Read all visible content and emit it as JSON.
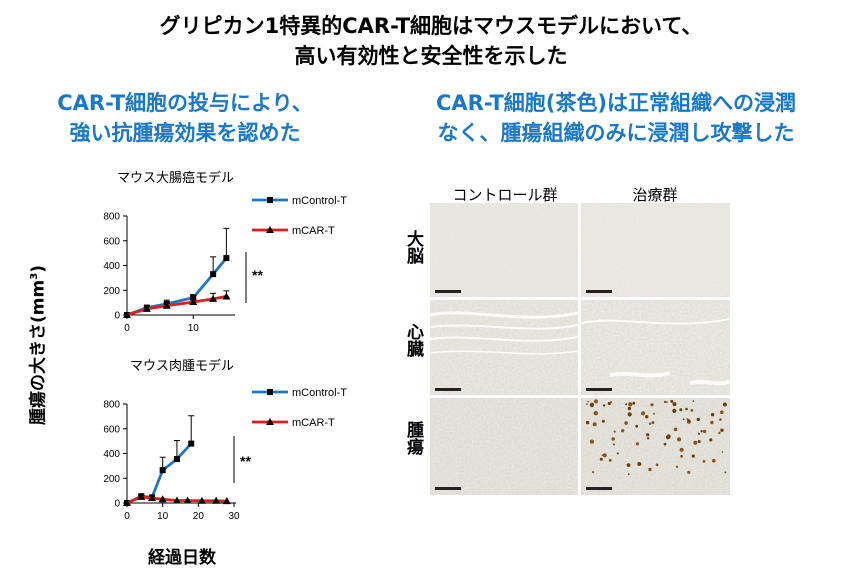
{
  "header": {
    "line1": "グリピカン1特異的CAR-T細胞はマウスモデルにおいて、",
    "line2": "高い有効性と安全性を示した"
  },
  "left_caption": {
    "line1": "CAR-T細胞の投与により、",
    "line2": "強い抗腫瘍効果を認めた"
  },
  "right_caption": {
    "line1": "CAR-T細胞(茶色)は正常組織への浸潤",
    "line2": "なく、腫瘍組織のみに浸潤し攻撃した"
  },
  "y_axis_label": "腫瘍の大きさ(mm",
  "y_axis_sup": "3",
  "y_axis_close": ")",
  "x_axis_label": "経過日数",
  "chart_data": [
    {
      "type": "line",
      "title": "マウス大腸癌モデル",
      "x": [
        0,
        3,
        6,
        10,
        13,
        15
      ],
      "xlim": [
        0,
        16
      ],
      "xticks": [
        0,
        10
      ],
      "ylim": [
        0,
        800
      ],
      "yticks": [
        0,
        200,
        400,
        600,
        800
      ],
      "series": [
        {
          "name": "mControl-T",
          "color": "#1f77c4",
          "marker": "square",
          "values": [
            0,
            60,
            90,
            140,
            330,
            460
          ],
          "err": [
            0,
            15,
            30,
            25,
            140,
            240
          ]
        },
        {
          "name": "mCAR-T",
          "color": "#e51c1c",
          "marker": "triangle",
          "values": [
            0,
            50,
            75,
            105,
            130,
            150
          ],
          "err": [
            0,
            15,
            25,
            20,
            45,
            45
          ]
        }
      ],
      "significance": "**"
    },
    {
      "type": "line",
      "title": "マウス肉腫モデル",
      "xlim": [
        0,
        30
      ],
      "xticks": [
        0,
        10,
        20,
        30
      ],
      "ylim": [
        0,
        800
      ],
      "yticks": [
        0,
        200,
        400,
        600,
        800
      ],
      "series": [
        {
          "name": "mControl-T",
          "color": "#1f77c4",
          "marker": "square",
          "x": [
            0,
            4,
            7,
            10,
            14,
            18
          ],
          "values": [
            0,
            55,
            45,
            265,
            355,
            480
          ],
          "err": [
            0,
            15,
            10,
            105,
            150,
            225
          ]
        },
        {
          "name": "mCAR-T",
          "color": "#e51c1c",
          "marker": "triangle",
          "x": [
            0,
            4,
            7,
            10,
            14,
            17,
            21,
            25,
            28
          ],
          "values": [
            0,
            50,
            40,
            30,
            20,
            20,
            18,
            18,
            15
          ],
          "err": [
            0,
            10,
            8,
            5,
            0,
            0,
            0,
            0,
            0
          ]
        }
      ],
      "significance": "**"
    }
  ],
  "histology": {
    "columns": [
      "コントロール群",
      "治療群"
    ],
    "rows": [
      "大脳",
      "心臓",
      "腫瘍"
    ]
  }
}
